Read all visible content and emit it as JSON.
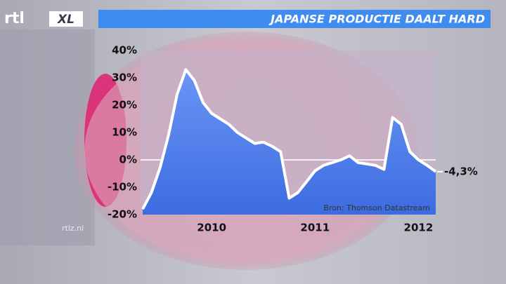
{
  "logo": "rtl",
  "logo_badge": "XL",
  "footer": "rtlz.nl",
  "chart_data": {
    "type": "area",
    "title": "JAPANSE PRODUCTIE DAALT HARD",
    "source": "Bron: Thomson Datastream",
    "x": [
      2009.333,
      2009.417,
      2009.5,
      2009.583,
      2009.667,
      2009.75,
      2009.833,
      2009.917,
      2010,
      2010.083,
      2010.167,
      2010.25,
      2010.333,
      2010.417,
      2010.5,
      2010.583,
      2010.667,
      2010.75,
      2010.833,
      2010.917,
      2011,
      2011.083,
      2011.167,
      2011.25,
      2011.333,
      2011.417,
      2011.5,
      2011.583,
      2011.667,
      2011.75,
      2011.833,
      2011.917,
      2012,
      2012.083,
      2012.167
    ],
    "values": [
      -18,
      -12,
      -3,
      9,
      24,
      33,
      29,
      21,
      17,
      15,
      13,
      10,
      8,
      6,
      6.5,
      5,
      3,
      -14,
      -12,
      -8,
      -4,
      -2,
      -1,
      0,
      1.5,
      -1,
      -1.5,
      -2,
      -3.5,
      15.5,
      13,
      3,
      0,
      -2,
      -4.3
    ],
    "value_labels": [
      null,
      null,
      null,
      null,
      null,
      null,
      null,
      null,
      null,
      null,
      null,
      null,
      null,
      null,
      null,
      null,
      null,
      null,
      null,
      null,
      null,
      null,
      null,
      null,
      null,
      null,
      null,
      null,
      null,
      null,
      null,
      null,
      null,
      null,
      "-4,3%"
    ],
    "color": "#5b86ee",
    "xlim": [
      2009.333,
      2012.167
    ],
    "xticks": [
      2010,
      2011,
      2012
    ],
    "ylim": [
      -20,
      40
    ],
    "yticks": [
      {
        "value": -20,
        "label": "-20%"
      },
      {
        "value": -10,
        "label": "-10%"
      },
      {
        "value": 0,
        "label": "0%"
      },
      {
        "value": 10,
        "label": "10%"
      },
      {
        "value": 20,
        "label": "20%"
      },
      {
        "value": 30,
        "label": "30%"
      },
      {
        "value": 40,
        "label": "40%"
      }
    ]
  }
}
